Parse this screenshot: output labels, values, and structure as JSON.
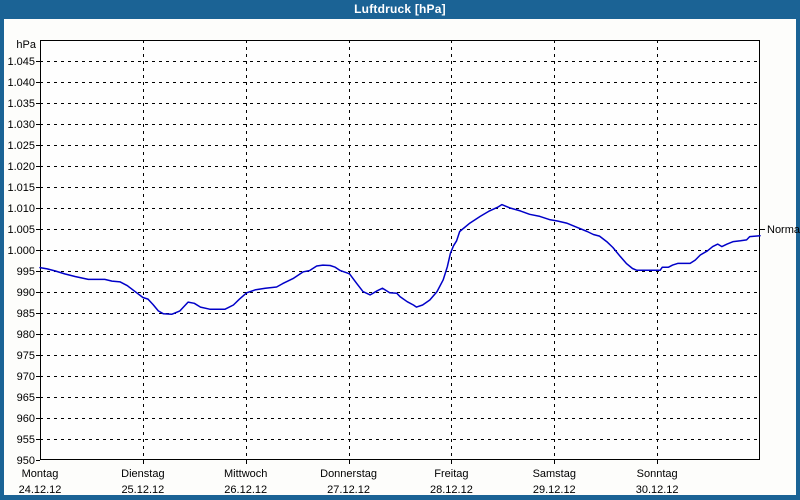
{
  "window": {
    "title": "Luftdruck [hPa]"
  },
  "colors": {
    "frame": "#1b6395",
    "title_text": "#ffffff",
    "content_bg": "#fdfdfb",
    "plot_bg": "#fefefe",
    "line": "#0000c8",
    "grid": "#000000",
    "border": "#000000",
    "text": "#000000"
  },
  "chart_data": {
    "type": "line",
    "title": "Luftdruck [hPa]",
    "unit_label": "hPa",
    "ylim": [
      950,
      1050
    ],
    "xlim_days": [
      0,
      7
    ],
    "grid": "dashed",
    "y_ticks": [
      {
        "v": 1045,
        "label": "1.045"
      },
      {
        "v": 1040,
        "label": "1.040"
      },
      {
        "v": 1035,
        "label": "1.035"
      },
      {
        "v": 1030,
        "label": "1.030"
      },
      {
        "v": 1025,
        "label": "1.025"
      },
      {
        "v": 1020,
        "label": "1.020"
      },
      {
        "v": 1015,
        "label": "1.015"
      },
      {
        "v": 1010,
        "label": "1.010"
      },
      {
        "v": 1005,
        "label": "1.005"
      },
      {
        "v": 1000,
        "label": "1.000"
      },
      {
        "v": 995,
        "label": "995"
      },
      {
        "v": 990,
        "label": "990"
      },
      {
        "v": 985,
        "label": "985"
      },
      {
        "v": 980,
        "label": "980"
      },
      {
        "v": 975,
        "label": "975"
      },
      {
        "v": 970,
        "label": "970"
      },
      {
        "v": 965,
        "label": "965"
      },
      {
        "v": 960,
        "label": "960"
      },
      {
        "v": 955,
        "label": "955"
      },
      {
        "v": 950,
        "label": "950"
      }
    ],
    "x_days": [
      {
        "weekday": "Montag",
        "date": "24.12.12"
      },
      {
        "weekday": "Dienstag",
        "date": "25.12.12"
      },
      {
        "weekday": "Mittwoch",
        "date": "26.12.12"
      },
      {
        "weekday": "Donnerstag",
        "date": "27.12.12"
      },
      {
        "weekday": "Freitag",
        "date": "28.12.12"
      },
      {
        "weekday": "Samstag",
        "date": "29.12.12"
      },
      {
        "weekday": "Sonntag",
        "date": "30.12.12"
      }
    ],
    "annotations": [
      {
        "label": "Normal",
        "value": 1005,
        "side": "right"
      }
    ],
    "series": [
      {
        "name": "Luftdruck",
        "color": "#0000c8",
        "points": [
          [
            0.0,
            995.8
          ],
          [
            0.07,
            995.5
          ],
          [
            0.15,
            995.0
          ],
          [
            0.24,
            994.3
          ],
          [
            0.34,
            993.7
          ],
          [
            0.47,
            993.0
          ],
          [
            0.63,
            993.0
          ],
          [
            0.7,
            992.6
          ],
          [
            0.78,
            992.4
          ],
          [
            0.85,
            991.5
          ],
          [
            0.92,
            990.2
          ],
          [
            1.0,
            988.7
          ],
          [
            1.05,
            988.3
          ],
          [
            1.1,
            987.0
          ],
          [
            1.15,
            985.5
          ],
          [
            1.2,
            984.8
          ],
          [
            1.28,
            984.7
          ],
          [
            1.36,
            985.5
          ],
          [
            1.44,
            987.6
          ],
          [
            1.5,
            987.3
          ],
          [
            1.56,
            986.4
          ],
          [
            1.65,
            985.9
          ],
          [
            1.8,
            985.9
          ],
          [
            1.88,
            986.9
          ],
          [
            1.94,
            988.3
          ],
          [
            2.01,
            989.8
          ],
          [
            2.09,
            990.5
          ],
          [
            2.19,
            990.9
          ],
          [
            2.3,
            991.2
          ],
          [
            2.36,
            992.0
          ],
          [
            2.46,
            993.2
          ],
          [
            2.56,
            994.8
          ],
          [
            2.62,
            995.1
          ],
          [
            2.69,
            996.2
          ],
          [
            2.75,
            996.4
          ],
          [
            2.82,
            996.3
          ],
          [
            2.87,
            995.9
          ],
          [
            2.92,
            995.1
          ],
          [
            2.99,
            994.5
          ],
          [
            3.01,
            994.3
          ],
          [
            3.08,
            992.0
          ],
          [
            3.14,
            990.1
          ],
          [
            3.21,
            989.3
          ],
          [
            3.28,
            990.3
          ],
          [
            3.33,
            990.9
          ],
          [
            3.4,
            989.8
          ],
          [
            3.47,
            989.7
          ],
          [
            3.5,
            988.9
          ],
          [
            3.57,
            987.7
          ],
          [
            3.63,
            986.9
          ],
          [
            3.66,
            986.4
          ],
          [
            3.72,
            986.9
          ],
          [
            3.79,
            988.1
          ],
          [
            3.86,
            990.1
          ],
          [
            3.92,
            992.9
          ],
          [
            3.96,
            996.0
          ],
          [
            3.99,
            999.2
          ],
          [
            4.02,
            1001.0
          ],
          [
            4.05,
            1002.2
          ],
          [
            4.08,
            1004.4
          ],
          [
            4.18,
            1006.4
          ],
          [
            4.28,
            1008.0
          ],
          [
            4.37,
            1009.3
          ],
          [
            4.45,
            1010.2
          ],
          [
            4.49,
            1010.8
          ],
          [
            4.57,
            1010.0
          ],
          [
            4.67,
            1009.3
          ],
          [
            4.76,
            1008.5
          ],
          [
            4.86,
            1008.0
          ],
          [
            4.96,
            1007.2
          ],
          [
            5.03,
            1006.9
          ],
          [
            5.12,
            1006.4
          ],
          [
            5.22,
            1005.4
          ],
          [
            5.32,
            1004.4
          ],
          [
            5.38,
            1003.7
          ],
          [
            5.44,
            1003.3
          ],
          [
            5.51,
            1002.0
          ],
          [
            5.57,
            1000.6
          ],
          [
            5.64,
            998.5
          ],
          [
            5.7,
            996.8
          ],
          [
            5.76,
            995.6
          ],
          [
            5.8,
            995.2
          ],
          [
            6.03,
            995.2
          ],
          [
            6.05,
            995.9
          ],
          [
            6.11,
            995.9
          ],
          [
            6.15,
            996.4
          ],
          [
            6.2,
            996.8
          ],
          [
            6.32,
            996.8
          ],
          [
            6.37,
            997.6
          ],
          [
            6.42,
            998.8
          ],
          [
            6.49,
            999.8
          ],
          [
            6.54,
            1000.8
          ],
          [
            6.59,
            1001.4
          ],
          [
            6.63,
            1000.8
          ],
          [
            6.68,
            1001.4
          ],
          [
            6.74,
            1002.0
          ],
          [
            6.81,
            1002.2
          ],
          [
            6.87,
            1002.4
          ],
          [
            6.9,
            1003.2
          ],
          [
            7.0,
            1003.4
          ]
        ]
      }
    ]
  }
}
